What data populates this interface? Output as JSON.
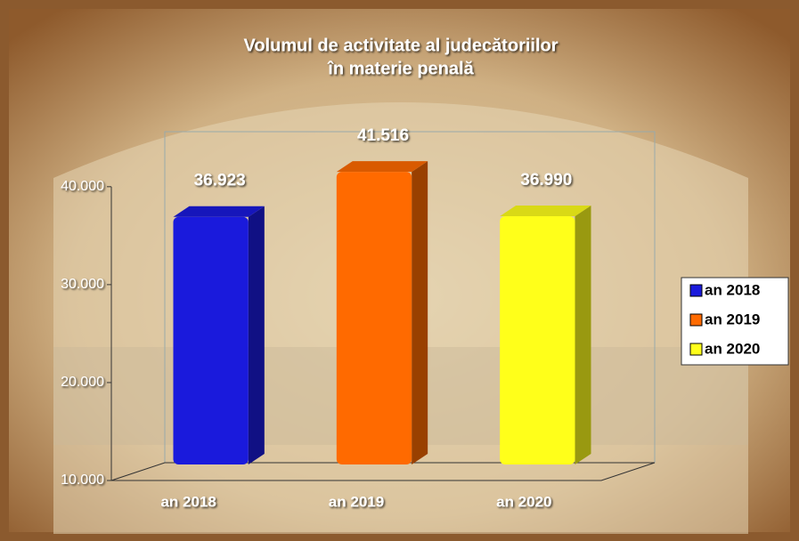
{
  "chart_data": {
    "type": "bar3d",
    "title": [
      "Volumul de activitate al judecătoriilor",
      "în materie penală"
    ],
    "categories": [
      "an 2018",
      "an 2019",
      "an 2020"
    ],
    "values": [
      36923,
      41516,
      36990
    ],
    "value_labels": [
      "36.923",
      "41.516",
      "36.990"
    ],
    "colors": [
      "#1a1adc",
      "#ff6a00",
      "#ffff1a"
    ],
    "ylim": [
      10000,
      43800
    ],
    "yticks": [
      {
        "value": 10000,
        "label": "10.000"
      },
      {
        "value": 20000,
        "label": "20.000"
      },
      {
        "value": 30000,
        "label": "30.000"
      },
      {
        "value": 40000,
        "label": "40.000"
      }
    ],
    "legend": "right"
  }
}
